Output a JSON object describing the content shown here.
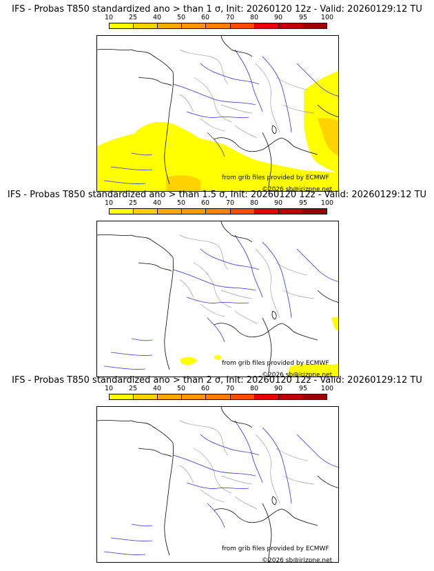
{
  "colorbar": {
    "ticks": [
      "10",
      "25",
      "40",
      "50",
      "60",
      "70",
      "80",
      "90",
      "95",
      "100"
    ],
    "colors": [
      "#ffff00",
      "#ffd200",
      "#ffaa00",
      "#ff9900",
      "#ff7f00",
      "#ff4c00",
      "#e60000",
      "#c00000",
      "#990000",
      "#5c0000"
    ]
  },
  "credit_line1": "from grib files provided by ECMWF",
  "credit_line2": "©2026 sb@irizpne.net",
  "panels": [
    {
      "title": "IFS - Probas T850  standardized ano > than 1 σ, Init: 20260120 12z - Valid: 20260129:12 TU"
    },
    {
      "title": "IFS - Probas T850  standardized ano > than 1.5 σ, Init: 20260120 12z - Valid: 20260129:12 TU"
    },
    {
      "title": "IFS - Probas T850  standardized ano > than 2 σ, Init: 20260120 12z - Valid: 20260129:12 TU"
    }
  ]
}
